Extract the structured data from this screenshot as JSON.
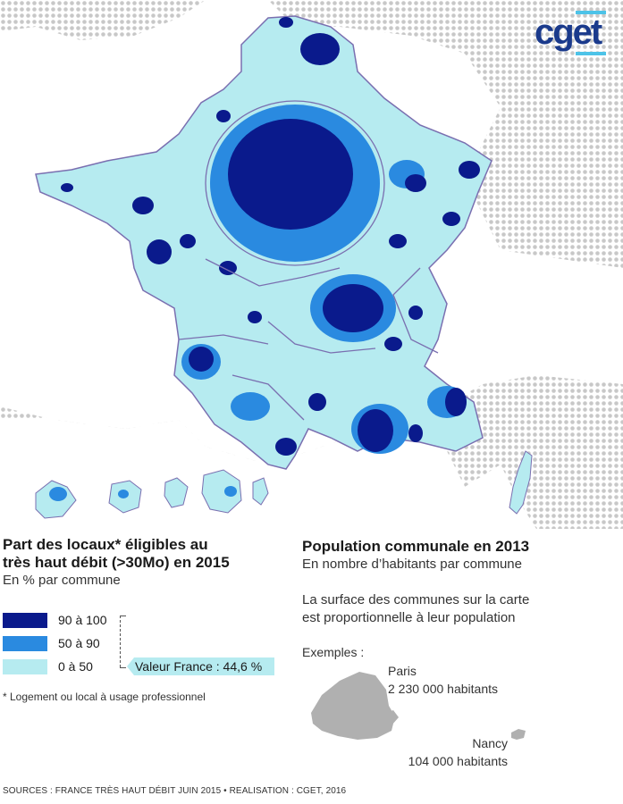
{
  "logo": {
    "text": "cget"
  },
  "colors": {
    "high": "#0a1a8c",
    "mid": "#2a8ae0",
    "low": "#b6ebf0",
    "border": "#7a6fb0",
    "dots": "#c8c8c8",
    "example": "#b0b0b0"
  },
  "legend_left": {
    "title_line1": "Part des locaux* éligibles au",
    "title_line2": "très haut débit (>30Mo) en 2015",
    "subtitle": "En % par commune",
    "items": [
      {
        "label": "90 à 100",
        "color": "#0a1a8c"
      },
      {
        "label": "50 à 90",
        "color": "#2a8ae0"
      },
      {
        "label": "0 à 50",
        "color": "#b6ebf0"
      }
    ],
    "national_value": "Valeur France : 44,6 %",
    "footnote": "* Logement ou local à usage professionnel"
  },
  "legend_right": {
    "title": "Population communale en 2013",
    "subtitle": "En nombre d’habitants par commune",
    "note_line1": "La surface des communes sur la carte",
    "note_line2": "est proportionnelle à leur population",
    "examples_label": "Exemples :",
    "examples": [
      {
        "name": "Paris",
        "population": "2 230 000 habitants"
      },
      {
        "name": "Nancy",
        "population": "104 000 habitants"
      }
    ]
  },
  "sources": "SOURCES : FRANCE TRÈS HAUT DÉBIT JUIN 2015 • REALISATION : CGET, 2016"
}
